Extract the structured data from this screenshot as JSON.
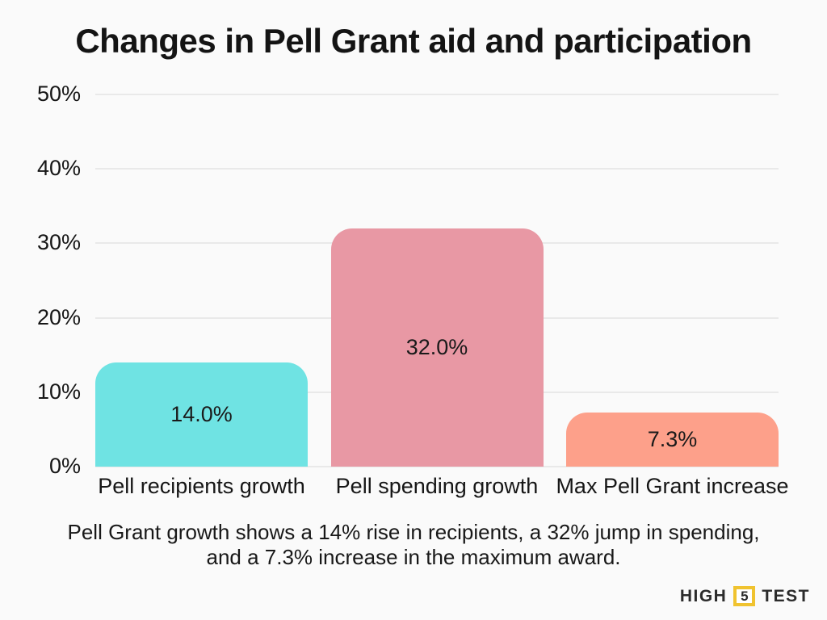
{
  "title": "Changes in Pell Grant aid and participation",
  "caption": "Pell Grant growth shows a 14% rise in recipients, a 32% jump in spending,\nand a 7.3% increase in the maximum award.",
  "colors": {
    "background": "#FAFAFA",
    "gridline": "#E9E9E9",
    "text": "#161616"
  },
  "logo": {
    "part1": "HIGH",
    "number": "5",
    "part2": "TEST",
    "accent_color": "#F0C330",
    "text_color": "#2B2B2B"
  },
  "chart_data": {
    "type": "bar",
    "categories": [
      "Pell recipients growth",
      "Pell spending growth",
      "Max Pell Grant increase"
    ],
    "values": [
      14.0,
      32.0,
      7.3
    ],
    "value_labels": [
      "14.0%",
      "32.0%",
      "7.3%"
    ],
    "bar_colors": [
      "#6FE3E3",
      "#E898A4",
      "#FDA08A"
    ],
    "title": "Changes in Pell Grant aid and participation",
    "xlabel": "",
    "ylabel": "",
    "ylim": [
      0,
      50
    ],
    "yticks": [
      0,
      10,
      20,
      30,
      40,
      50
    ],
    "ytick_labels": [
      "0%",
      "10%",
      "20%",
      "30%",
      "40%",
      "50%"
    ],
    "grid": true,
    "legend": false
  }
}
